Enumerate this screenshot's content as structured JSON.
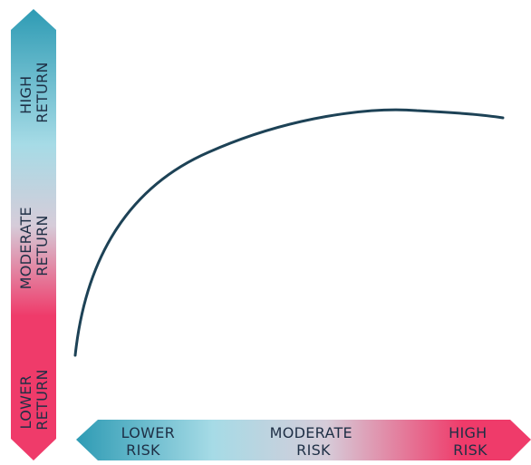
{
  "colors": {
    "teal": "#2e9bb4",
    "light_teal": "#a6dbe6",
    "pale": "#d6ccd9",
    "pink": "#ef3b6a",
    "curve": "#1d4256",
    "text": "#1e2f45"
  },
  "y_axis": {
    "top_label": [
      "HIGH",
      "RETURN"
    ],
    "middle_label": [
      "MODERATE",
      "RETURN"
    ],
    "bottom_label": [
      "LOWER",
      "RETURN"
    ]
  },
  "x_axis": {
    "left_label": [
      "LOWER",
      "RISK"
    ],
    "middle_label": [
      "MODERATE",
      "RISK"
    ],
    "right_label": [
      "HIGH",
      "RISK"
    ]
  }
}
